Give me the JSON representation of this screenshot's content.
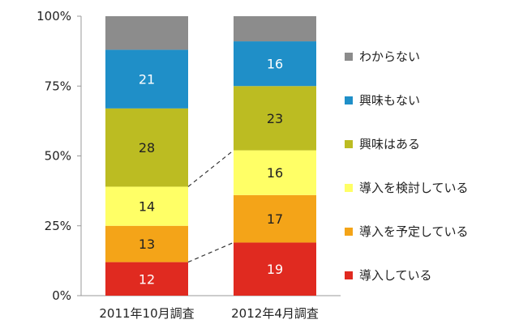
{
  "chart_data": {
    "type": "bar",
    "stacked": true,
    "percent": true,
    "categories": [
      "2011年10月調査",
      "2012年4月調査"
    ],
    "series": [
      {
        "name": "導入している",
        "values": [
          12,
          19
        ],
        "color": "#e02a20"
      },
      {
        "name": "導入を予定している",
        "values": [
          13,
          17
        ],
        "color": "#f4a418"
      },
      {
        "name": "導入を検討している",
        "values": [
          14,
          16
        ],
        "color": "#ffff66"
      },
      {
        "name": "興味はある",
        "values": [
          28,
          23
        ],
        "color": "#bcbc22"
      },
      {
        "name": "興味もない",
        "values": [
          21,
          16
        ],
        "color": "#1f8fc8"
      },
      {
        "name": "わからない",
        "values": [
          12,
          9
        ],
        "color": "#8c8c8c"
      }
    ],
    "value_labels": [
      [
        "12",
        "19"
      ],
      [
        "13",
        "17"
      ],
      [
        "14",
        "16"
      ],
      [
        "28",
        "23"
      ],
      [
        "21",
        "16"
      ],
      [
        "",
        ""
      ]
    ],
    "yticks": [
      "0%",
      "25%",
      "50%",
      "75%",
      "100%"
    ],
    "ylim": [
      0,
      100
    ],
    "legend_position": "right",
    "connector_lines": "dashed between bars at top of 導入している and top of 導入を検討している"
  }
}
